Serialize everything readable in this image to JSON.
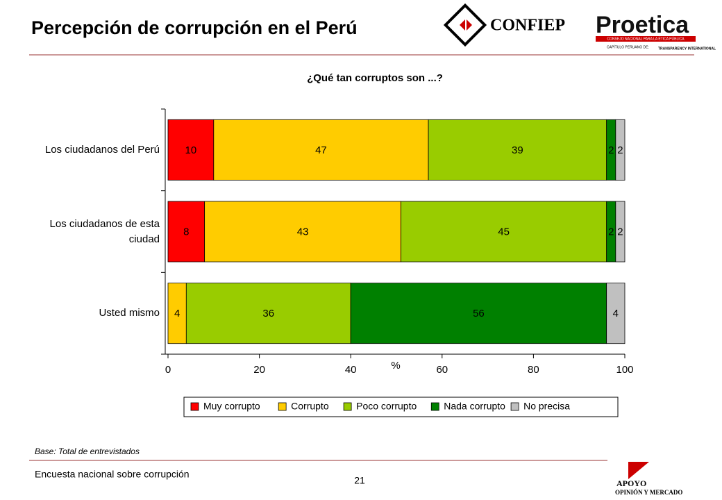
{
  "header": {
    "title": "Percepción de corrupción en el Perú"
  },
  "logos": {
    "confiep": "CONFIEP",
    "proetica": "Proetica",
    "proetica_sub": "CONSEJO NACIONAL PARA LA ÉTICA PÚBLICA",
    "proetica_chapter": "CAPÍTULO PERUANO DE:",
    "transparency": "TRANSPARENCY INTERNATIONAL",
    "apoyo": "APOYO",
    "apoyo_sub": "OPINIÓN Y MERCADO"
  },
  "chart_data": {
    "type": "stacked_bar_horizontal",
    "title": "¿Qué tan corruptos son ...?",
    "x_label": "%",
    "categories": [
      "Los ciudadanos del Perú",
      "Los ciudadanos de esta ciudad",
      "Usted mismo"
    ],
    "series": [
      {
        "name": "Muy corrupto",
        "color": "#ff0000",
        "values": [
          10,
          8,
          null
        ]
      },
      {
        "name": "Corrupto",
        "color": "#ffcc00",
        "values": [
          47,
          43,
          4
        ]
      },
      {
        "name": "Poco corrupto",
        "color": "#99cc00",
        "values": [
          39,
          45,
          36
        ]
      },
      {
        "name": "Nada corrupto",
        "color": "#008000",
        "values": [
          2,
          2,
          56
        ]
      },
      {
        "name": "No precisa",
        "color": "#c0c0c0",
        "values": [
          2,
          2,
          4
        ]
      }
    ],
    "xlim": [
      0,
      100
    ],
    "xticks": [
      0,
      20,
      40,
      60,
      80,
      100
    ],
    "legend": "bottom"
  },
  "footer": {
    "base": "Base: Total de entrevistados",
    "survey": "Encuesta nacional sobre corrupción",
    "page": "21"
  }
}
